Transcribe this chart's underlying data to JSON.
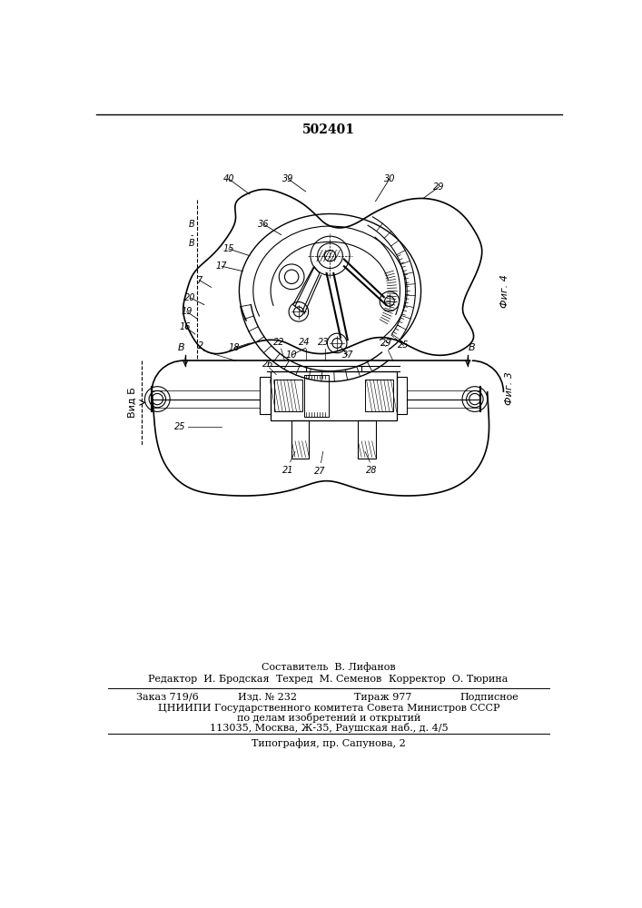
{
  "patent_number": "502401",
  "background_color": "#ffffff",
  "text_color": "#000000",
  "footer": {
    "sostavitel": "Составитель  В. Лифанов",
    "redaktor": "Редактор  И. Бродская",
    "tehred": "Техред  М. Семенов",
    "korrektor": "Корректор  О. Тюрина",
    "zakaz": "Заказ 719/6",
    "izd": "Изд. № 232",
    "tirazh": "Тираж 977",
    "podpisnoe": "Подписное",
    "tsniipи": "ЦНИИПИ Государственного комитета Совета Министров СССР",
    "line2": "по делам изобретений и открытий",
    "line3": "113035, Москва, Ж-35, Раушская наб., д. 4/5",
    "tipografiya": "Типография, пр. Сапунова, 2"
  }
}
